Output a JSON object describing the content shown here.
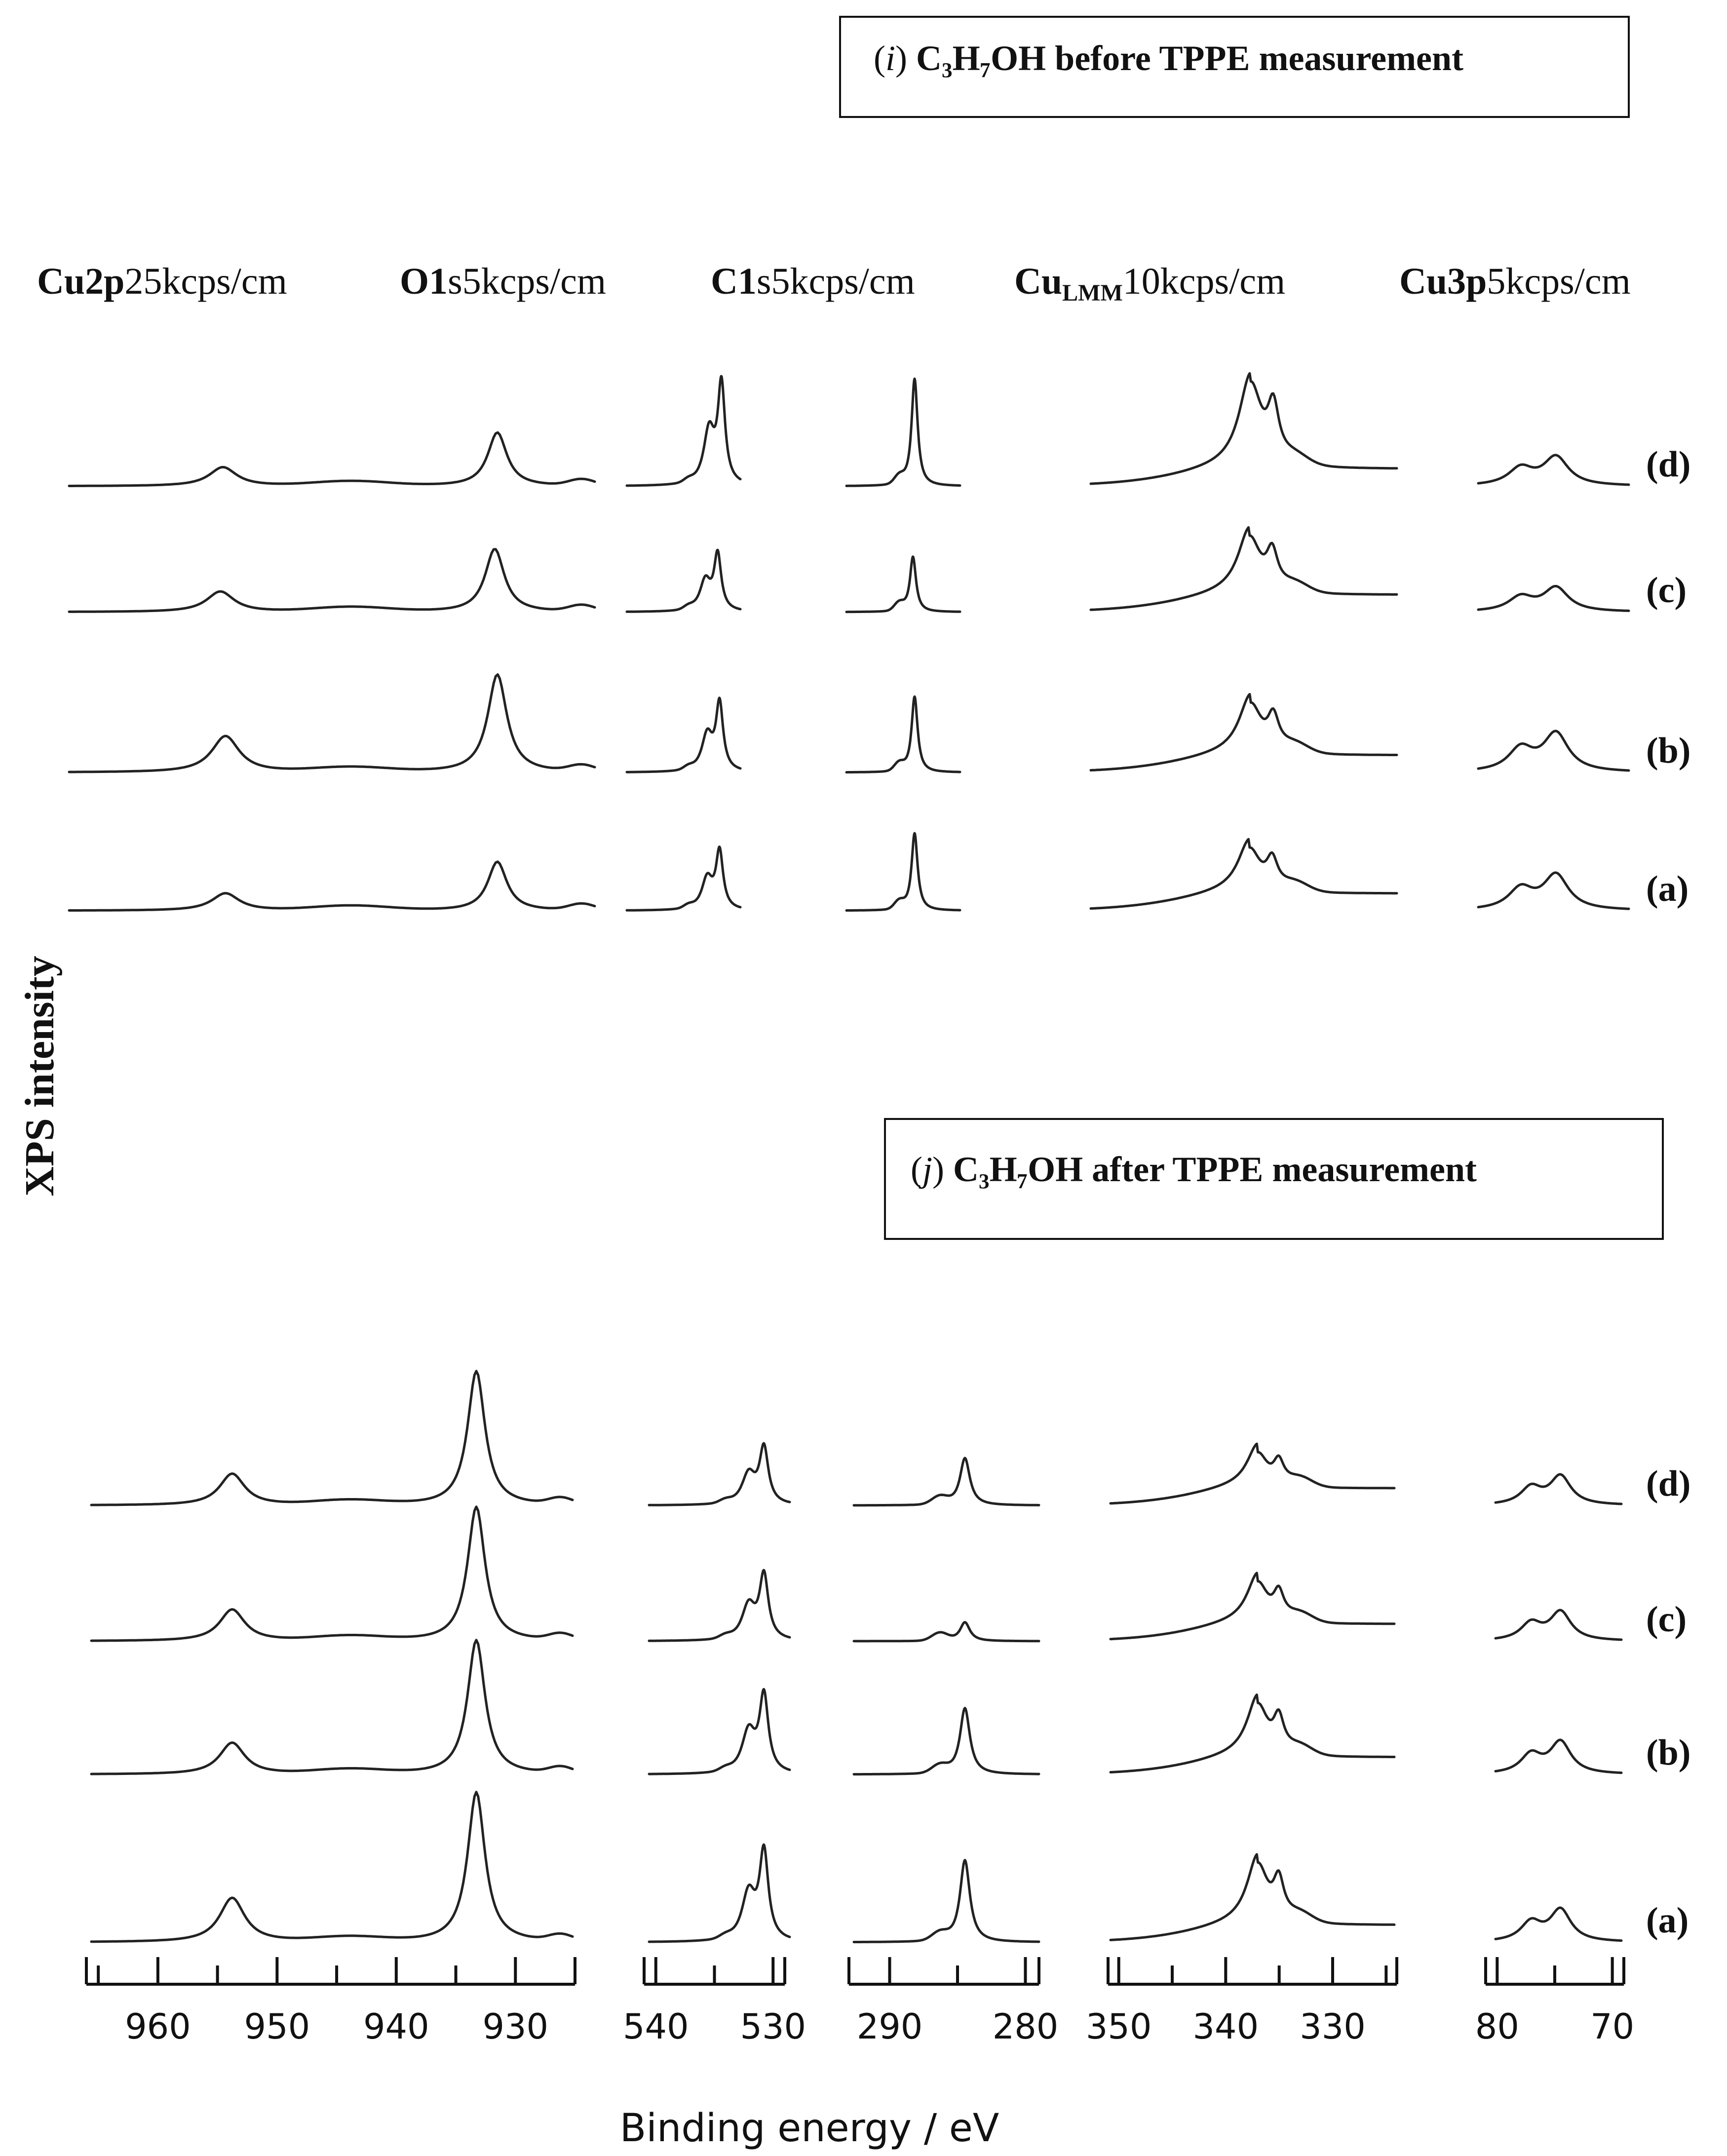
{
  "panels": [
    {
      "id": "i",
      "title_prefix": "i",
      "title_text": "C₃H₇OH before TPPE measurement"
    },
    {
      "id": "j",
      "title_prefix": "j",
      "title_text": "C₃H₇OH after TPPE measurement"
    }
  ],
  "region_headers": [
    {
      "id": "cu2p",
      "bold": "Cu2p",
      "sub": "",
      "scale": "25kcps/cm"
    },
    {
      "id": "o1s",
      "bold": "O1",
      "sub": "",
      "scale": "s5kcps/cm"
    },
    {
      "id": "c1s",
      "bold": "C1",
      "sub": "",
      "scale": "s5kcps/cm"
    },
    {
      "id": "culmm",
      "bold": "Cu",
      "sub": "LMM",
      "scale": "10kcps/cm"
    },
    {
      "id": "cu3p",
      "bold": "Cu3p",
      "sub": "",
      "scale": "5kcps/cm"
    }
  ],
  "sample_labels": [
    "(d)",
    "(c)",
    "(b)",
    "(a)"
  ],
  "ylabel": "XPS intensity",
  "xlabel": "Binding energy / eV",
  "chart_data": [
    {
      "type": "line",
      "title": "(i) C3H7OH before TPPE measurement",
      "ylabel": "XPS intensity",
      "xlabel": "Binding energy / eV",
      "x_direction": "decreasing",
      "series_order_top_to_bottom": [
        "(d)",
        "(c)",
        "(b)",
        "(a)"
      ],
      "regions": [
        {
          "region": "Cu2p",
          "scale": "25kcps/cm",
          "xlim": [
            966,
            925
          ],
          "ticks": [
            960,
            950,
            940,
            930
          ],
          "peaks": [
            {
              "name": "(d)",
              "peak_eV": 954.0,
              "height": 0.12,
              "main_eV": 932.6,
              "main_height": 0.34
            },
            {
              "name": "(c)",
              "peak_eV": 954.2,
              "height": 0.13,
              "main_eV": 932.8,
              "main_height": 0.4
            },
            {
              "name": "(b)",
              "peak_eV": 953.8,
              "height": 0.23,
              "main_eV": 932.6,
              "main_height": 0.62
            },
            {
              "name": "(a)",
              "peak_eV": 953.8,
              "height": 0.11,
              "main_eV": 932.6,
              "main_height": 0.31
            }
          ]
        },
        {
          "region": "O1s",
          "scale": "5kcps/cm",
          "xlim": [
            541,
            529
          ],
          "ticks": [
            540,
            530
          ],
          "peaks": [
            {
              "name": "(d)",
              "peak_eV": 531.0,
              "height": 0.62
            },
            {
              "name": "(c)",
              "peak_eV": 531.4,
              "height": 0.35
            },
            {
              "name": "(b)",
              "peak_eV": 531.2,
              "height": 0.42
            },
            {
              "name": "(a)",
              "peak_eV": 531.2,
              "height": 0.36
            }
          ]
        },
        {
          "region": "C1s",
          "scale": "5kcps/cm",
          "xlim": [
            293,
            279
          ],
          "ticks": [
            290,
            280
          ],
          "peaks": [
            {
              "name": "(d)",
              "peak_eV": 284.6,
              "height": 0.68
            },
            {
              "name": "(c)",
              "peak_eV": 284.8,
              "height": 0.35
            },
            {
              "name": "(b)",
              "peak_eV": 284.6,
              "height": 0.48
            },
            {
              "name": "(a)",
              "peak_eV": 284.6,
              "height": 0.49
            }
          ]
        },
        {
          "region": "CuLMM",
          "scale": "10kcps/cm",
          "xlim": [
            351,
            324
          ],
          "ticks": [
            350,
            340,
            330
          ],
          "peaks": [
            {
              "name": "(d)",
              "peak_eV": 336.9,
              "height": 0.55
            },
            {
              "name": "(c)",
              "peak_eV": 337.0,
              "height": 0.38
            },
            {
              "name": "(b)",
              "peak_eV": 336.9,
              "height": 0.34
            },
            {
              "name": "(a)",
              "peak_eV": 337.0,
              "height": 0.3
            }
          ]
        },
        {
          "region": "Cu3p",
          "scale": "5kcps/cm",
          "xlim": [
            81,
            69
          ],
          "ticks": [
            80,
            70
          ],
          "peaks": [
            {
              "name": "(d)",
              "peak_eV": 74.8,
              "height": 0.18
            },
            {
              "name": "(c)",
              "peak_eV": 74.8,
              "height": 0.15
            },
            {
              "name": "(b)",
              "peak_eV": 74.8,
              "height": 0.24
            },
            {
              "name": "(a)",
              "peak_eV": 74.8,
              "height": 0.22
            }
          ]
        }
      ]
    },
    {
      "type": "line",
      "title": "(j) C3H7OH after TPPE measurement",
      "ylabel": "XPS intensity",
      "xlabel": "Binding energy / eV",
      "x_direction": "decreasing",
      "series_order_top_to_bottom": [
        "(d)",
        "(c)",
        "(b)",
        "(a)"
      ],
      "regions": [
        {
          "region": "Cu2p",
          "scale": "25kcps/cm",
          "xlim": [
            966,
            925
          ],
          "ticks": [
            960,
            950,
            940,
            930
          ],
          "peaks": [
            {
              "name": "(d)",
              "peak_eV": 954.0,
              "height": 0.2,
              "main_eV": 933.2,
              "main_height": 0.85
            },
            {
              "name": "(c)",
              "peak_eV": 954.0,
              "height": 0.2,
              "main_eV": 933.2,
              "main_height": 0.85
            },
            {
              "name": "(b)",
              "peak_eV": 954.0,
              "height": 0.2,
              "main_eV": 933.2,
              "main_height": 0.85
            },
            {
              "name": "(a)",
              "peak_eV": 954.0,
              "height": 0.28,
              "main_eV": 933.2,
              "main_height": 0.95
            }
          ]
        },
        {
          "region": "O1s",
          "scale": "5kcps/cm",
          "xlim": [
            541,
            529
          ],
          "ticks": [
            540,
            530
          ],
          "peaks": [
            {
              "name": "(d)",
              "peak_eV": 531.2,
              "height": 0.35
            },
            {
              "name": "(c)",
              "peak_eV": 531.2,
              "height": 0.4
            },
            {
              "name": "(b)",
              "peak_eV": 531.2,
              "height": 0.48
            },
            {
              "name": "(a)",
              "peak_eV": 531.2,
              "height": 0.55
            }
          ]
        },
        {
          "region": "C1s",
          "scale": "5kcps/cm",
          "xlim": [
            293,
            279
          ],
          "ticks": [
            290,
            280
          ],
          "peaks": [
            {
              "name": "(d)",
              "peak_eV": 284.6,
              "height": 0.3
            },
            {
              "name": "(c)",
              "peak_eV": 284.6,
              "height": 0.12
            },
            {
              "name": "(b)",
              "peak_eV": 284.6,
              "height": 0.42
            },
            {
              "name": "(a)",
              "peak_eV": 284.6,
              "height": 0.52
            }
          ]
        },
        {
          "region": "CuLMM",
          "scale": "10kcps/cm",
          "xlim": [
            351,
            324
          ],
          "ticks": [
            350,
            340,
            330
          ],
          "peaks": [
            {
              "name": "(d)",
              "peak_eV": 337.0,
              "height": 0.24
            },
            {
              "name": "(c)",
              "peak_eV": 337.0,
              "height": 0.28
            },
            {
              "name": "(b)",
              "peak_eV": 337.0,
              "height": 0.35
            },
            {
              "name": "(a)",
              "peak_eV": 337.0,
              "height": 0.4
            }
          ]
        },
        {
          "region": "Cu3p",
          "scale": "5kcps/cm",
          "xlim": [
            81,
            69
          ],
          "ticks": [
            80,
            70
          ],
          "peaks": [
            {
              "name": "(d)",
              "peak_eV": 74.8,
              "height": 0.18
            },
            {
              "name": "(c)",
              "peak_eV": 74.8,
              "height": 0.18
            },
            {
              "name": "(b)",
              "peak_eV": 74.8,
              "height": 0.2
            },
            {
              "name": "(a)",
              "peak_eV": 74.8,
              "height": 0.2
            }
          ]
        }
      ]
    }
  ],
  "axis_tick_labels": [
    "960",
    "950",
    "940",
    "930",
    "540",
    "530",
    "290",
    "280",
    "350",
    "340",
    "330",
    "80",
    "70"
  ]
}
